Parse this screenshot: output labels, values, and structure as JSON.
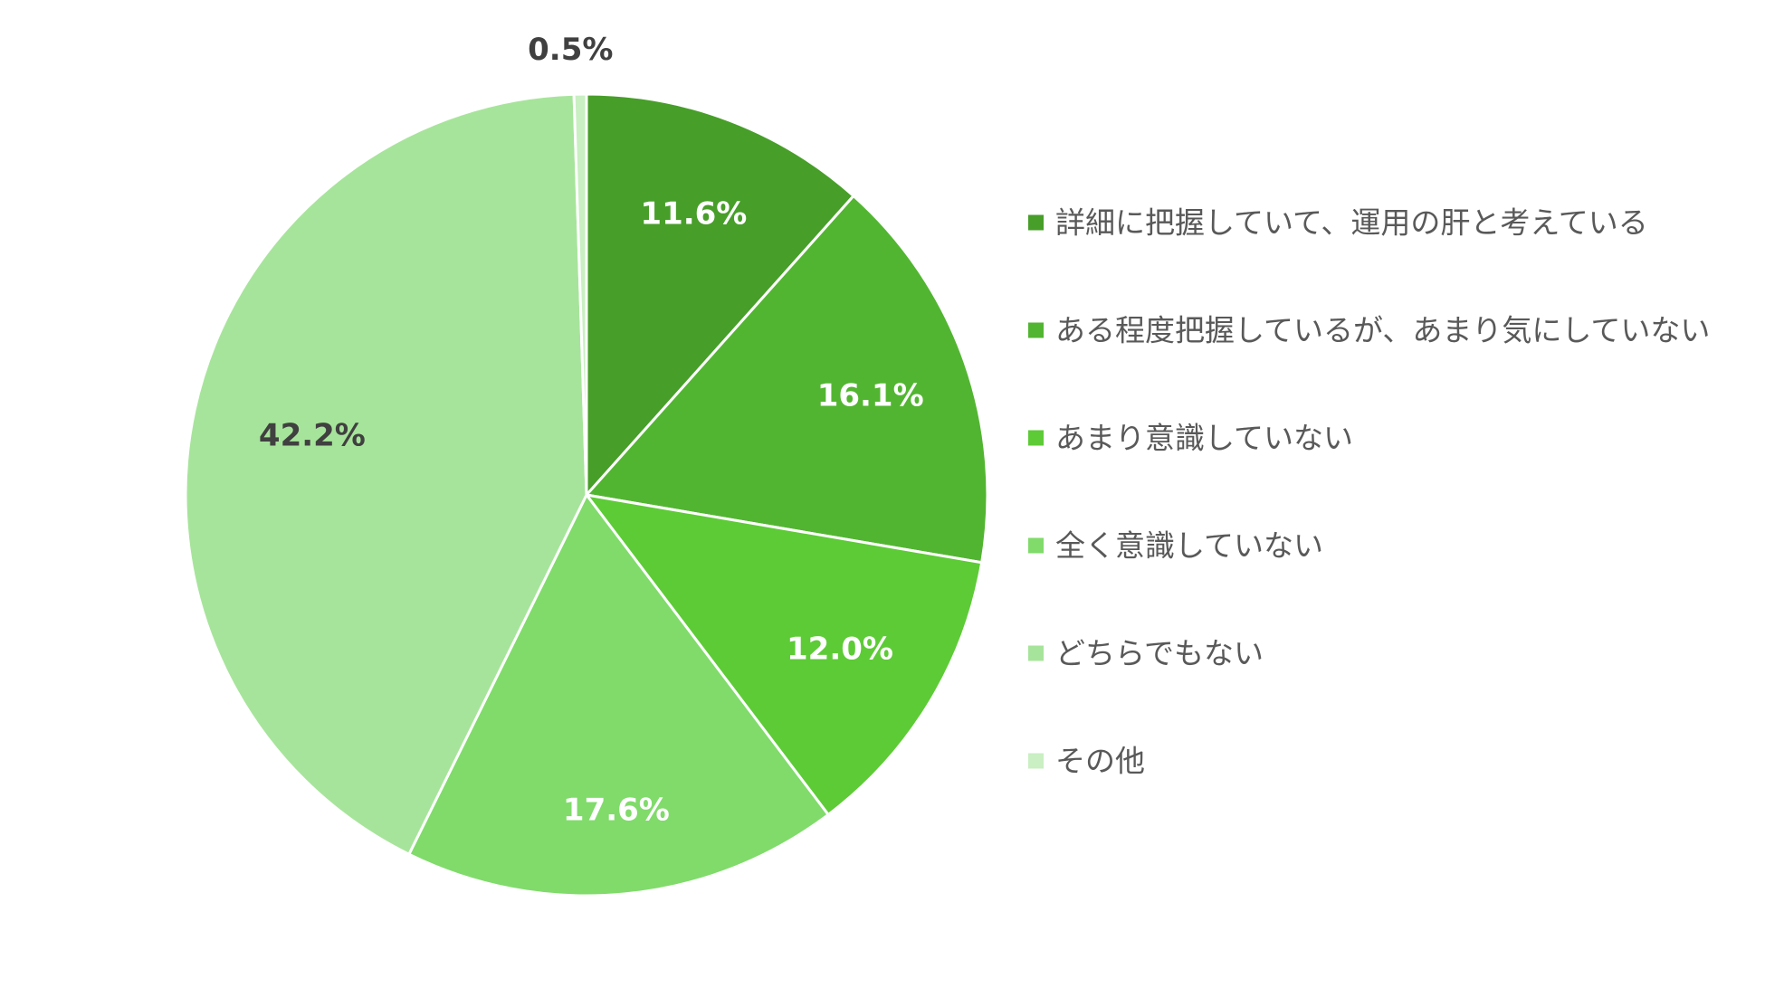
{
  "chart_data": {
    "type": "pie",
    "start_angle_deg": 0,
    "direction": "clockwise",
    "legend_position": "right",
    "slices": [
      {
        "name": "詳細に把握していて、運用の肝と考えている",
        "value": 11.6,
        "label": "11.6%",
        "color": "#479E29",
        "label_color": "#ffffff"
      },
      {
        "name": "ある程度把握しているが、あまり気にしていない",
        "value": 16.1,
        "label": "16.1%",
        "color": "#52B531",
        "label_color": "#ffffff"
      },
      {
        "name": "あまり意識していない",
        "value": 12.0,
        "label": "12.0%",
        "color": "#5DCB36",
        "label_color": "#ffffff"
      },
      {
        "name": "全く意識していない",
        "value": 17.6,
        "label": "17.6%",
        "color": "#80DB6B",
        "label_color": "#ffffff"
      },
      {
        "name": "どちらでもない",
        "value": 42.2,
        "label": "42.2%",
        "color": "#A7E49B",
        "label_color": "#404040"
      },
      {
        "name": "その他",
        "value": 0.5,
        "label": "0.5%",
        "color": "#C9EFC2",
        "label_color": "#404040"
      }
    ]
  }
}
